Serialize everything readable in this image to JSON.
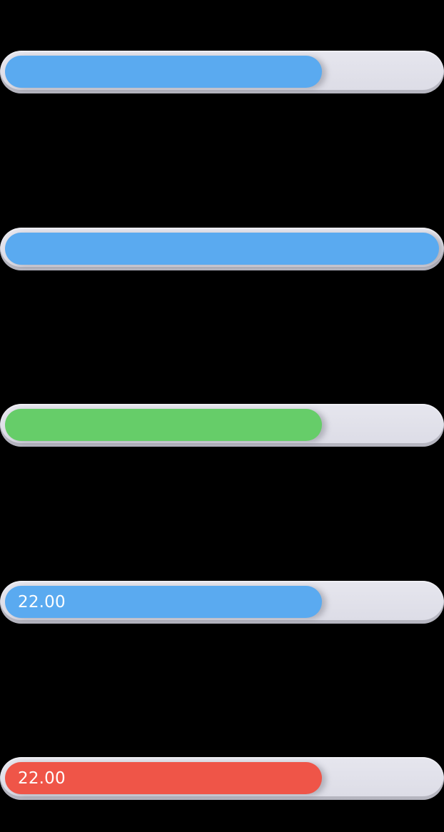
{
  "bars": [
    {
      "progress": 0.73,
      "color": "#5aaaf0",
      "label": ""
    },
    {
      "progress": 1.0,
      "color": "#5aaaf0",
      "label": ""
    },
    {
      "progress": 0.73,
      "color": "#66cd69",
      "label": ""
    },
    {
      "progress": 0.73,
      "color": "#5aaaf0",
      "label": "22.00"
    },
    {
      "progress": 0.73,
      "color": "#ef5548",
      "label": "22.00"
    }
  ]
}
